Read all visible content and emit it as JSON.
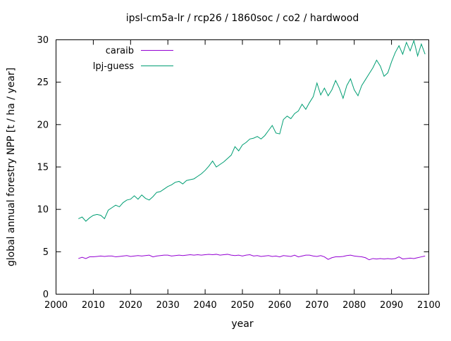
{
  "window": {
    "background": "#ffffff",
    "foreground": "#000000"
  },
  "chart_data": {
    "type": "line",
    "title": "ipsl-cm5a-lr / rcp26 / 1860soc / co2 / hardwood",
    "xlabel": "year",
    "ylabel": "global annual forestry NPP [t / ha / year]",
    "xlim": [
      2000,
      2100
    ],
    "ylim": [
      0,
      30
    ],
    "x_ticks": [
      2000,
      2010,
      2020,
      2030,
      2040,
      2050,
      2060,
      2070,
      2080,
      2090,
      2100
    ],
    "y_ticks": [
      0,
      5,
      10,
      15,
      20,
      25,
      30
    ],
    "grid": false,
    "legend_position": "top-left-inside",
    "x_start": 2006,
    "x_step": 1,
    "x": [
      2006,
      2007,
      2008,
      2009,
      2010,
      2011,
      2012,
      2013,
      2014,
      2015,
      2016,
      2017,
      2018,
      2019,
      2020,
      2021,
      2022,
      2023,
      2024,
      2025,
      2026,
      2027,
      2028,
      2029,
      2030,
      2031,
      2032,
      2033,
      2034,
      2035,
      2036,
      2037,
      2038,
      2039,
      2040,
      2041,
      2042,
      2043,
      2044,
      2045,
      2046,
      2047,
      2048,
      2049,
      2050,
      2051,
      2052,
      2053,
      2054,
      2055,
      2056,
      2057,
      2058,
      2059,
      2060,
      2061,
      2062,
      2063,
      2064,
      2065,
      2066,
      2067,
      2068,
      2069,
      2070,
      2071,
      2072,
      2073,
      2074,
      2075,
      2076,
      2077,
      2078,
      2079,
      2080,
      2081,
      2082,
      2083,
      2084,
      2085,
      2086,
      2087,
      2088,
      2089,
      2090,
      2091,
      2092,
      2093,
      2094,
      2095,
      2096,
      2097,
      2098,
      2099
    ],
    "series": [
      {
        "name": "caraib",
        "color": "#9400d3",
        "values": [
          4.2,
          4.35,
          4.2,
          4.4,
          4.4,
          4.45,
          4.5,
          4.45,
          4.5,
          4.5,
          4.4,
          4.45,
          4.5,
          4.55,
          4.45,
          4.5,
          4.55,
          4.5,
          4.55,
          4.6,
          4.4,
          4.5,
          4.55,
          4.6,
          4.6,
          4.5,
          4.55,
          4.6,
          4.55,
          4.6,
          4.65,
          4.6,
          4.65,
          4.6,
          4.65,
          4.7,
          4.65,
          4.7,
          4.6,
          4.65,
          4.7,
          4.6,
          4.55,
          4.6,
          4.5,
          4.6,
          4.65,
          4.5,
          4.55,
          4.45,
          4.5,
          4.55,
          4.45,
          4.5,
          4.4,
          4.55,
          4.5,
          4.45,
          4.6,
          4.4,
          4.5,
          4.6,
          4.6,
          4.5,
          4.45,
          4.55,
          4.4,
          4.1,
          4.3,
          4.4,
          4.4,
          4.45,
          4.55,
          4.6,
          4.5,
          4.45,
          4.4,
          4.3,
          4.05,
          4.2,
          4.15,
          4.2,
          4.15,
          4.2,
          4.15,
          4.2,
          4.4,
          4.15,
          4.2,
          4.25,
          4.2,
          4.3,
          4.4,
          4.5
        ]
      },
      {
        "name": "lpj-guess",
        "color": "#009e73",
        "values": [
          8.9,
          9.1,
          8.6,
          9.0,
          9.3,
          9.4,
          9.3,
          8.9,
          9.9,
          10.2,
          10.5,
          10.3,
          10.8,
          11.1,
          11.2,
          11.6,
          11.2,
          11.7,
          11.3,
          11.1,
          11.5,
          12.0,
          12.1,
          12.4,
          12.7,
          12.9,
          13.2,
          13.3,
          13.0,
          13.4,
          13.5,
          13.6,
          13.9,
          14.2,
          14.6,
          15.1,
          15.7,
          15.0,
          15.3,
          15.6,
          16.0,
          16.4,
          17.4,
          16.9,
          17.6,
          17.9,
          18.3,
          18.4,
          18.6,
          18.3,
          18.7,
          19.3,
          19.9,
          19.0,
          18.9,
          20.6,
          21.0,
          20.7,
          21.3,
          21.6,
          22.4,
          21.8,
          22.6,
          23.3,
          24.9,
          23.5,
          24.3,
          23.4,
          24.1,
          25.2,
          24.3,
          23.1,
          24.6,
          25.4,
          24.1,
          23.4,
          24.6,
          25.3,
          26.0,
          26.7,
          27.6,
          26.9,
          25.7,
          26.1,
          27.4,
          28.5,
          29.3,
          28.3,
          29.7,
          28.7,
          29.9,
          28.1,
          29.5,
          28.3
        ]
      }
    ]
  }
}
